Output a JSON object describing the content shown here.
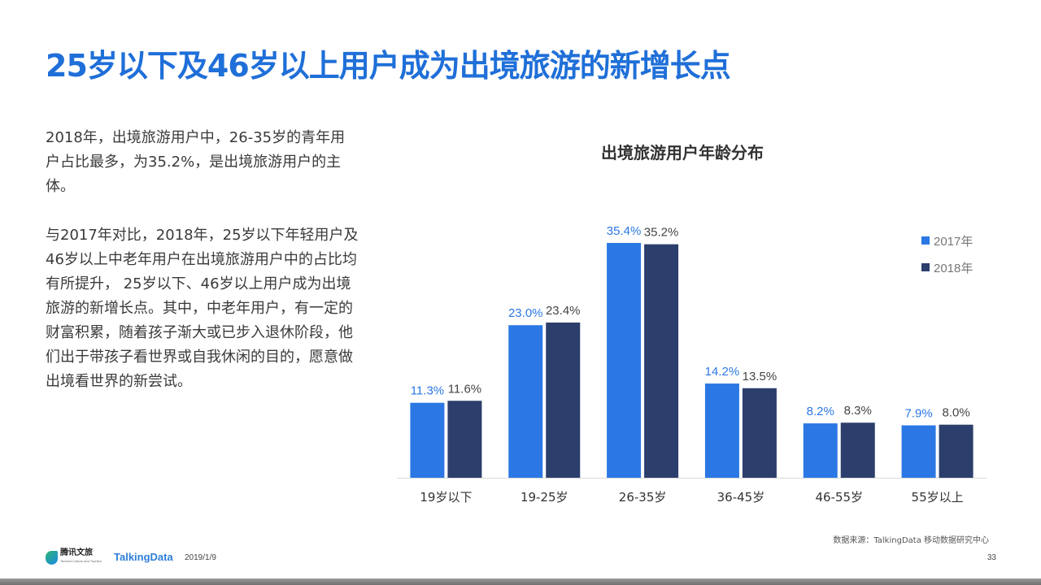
{
  "slide": {
    "title": "25岁以下及46岁以上用户成为出境旅游的新增长点",
    "paragraphs": [
      "2018年，出境旅游用户中，26-35岁的青年用户占比最多，为35.2%，是出境旅游用户的主体。",
      "与2017年对比，2018年，25岁以下年轻用户及46岁以上中老年用户在出境旅游用户中的占比均有所提升， 25岁以下、46岁以上用户成为出境旅游的新增长点。其中，中老年用户，有一定的财富积累，随着孩子渐大或已步入退休阶段，他们出于带孩子看世界或自我休闲的目的，愿意做出境看世界的新尝试。"
    ]
  },
  "chart_data": {
    "type": "bar",
    "title": "出境旅游用户年龄分布",
    "categories": [
      "19岁以下",
      "19-25岁",
      "26-35岁",
      "36-45岁",
      "46-55岁",
      "55岁以上"
    ],
    "series": [
      {
        "name": "2017年",
        "values": [
          11.3,
          23.0,
          35.4,
          14.2,
          8.2,
          7.9
        ],
        "labels": [
          "11.3%",
          "23.0%",
          "35.4%",
          "14.2%",
          "8.2%",
          "7.9%"
        ],
        "color": "#2b78e4",
        "label_color": "#2b78e4"
      },
      {
        "name": "2018年",
        "values": [
          11.6,
          23.4,
          35.2,
          13.5,
          8.3,
          8.0
        ],
        "labels": [
          "11.6%",
          "23.4%",
          "35.2%",
          "13.5%",
          "8.3%",
          "8.0%"
        ],
        "color": "#2c3e6b",
        "label_color": "#444444"
      }
    ],
    "ylim": [
      0,
      35.4
    ],
    "grid": false,
    "legend_position": "top-right"
  },
  "footer": {
    "source": "数据来源：TalkingData  移动数据研究中心",
    "tencent_name": "腾讯文旅",
    "tencent_sub": "Tencent Culture and Tourism",
    "talkingdata": "TalkingData",
    "date": "2019/1/9",
    "page_number": "33"
  }
}
